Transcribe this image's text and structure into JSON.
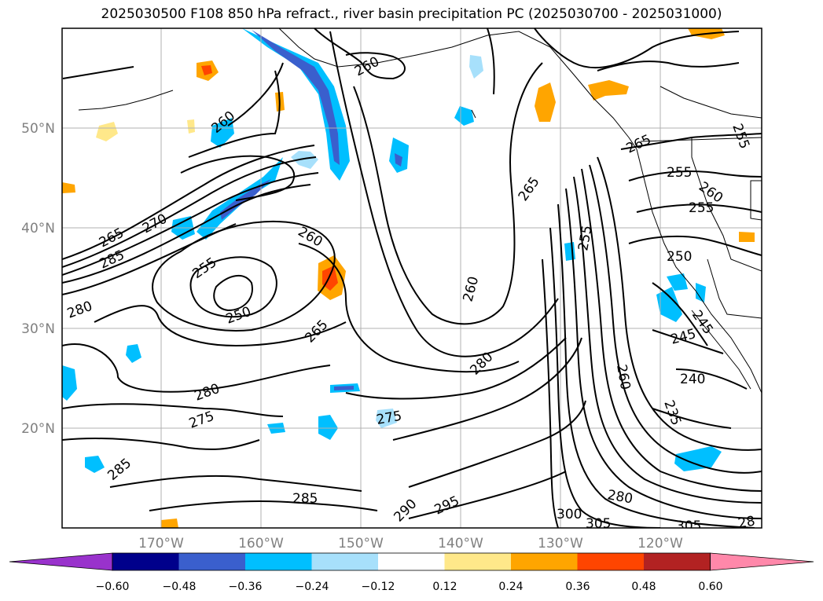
{
  "title": "2025030500 F108 850 hPa refract., river basin precipitation PC (2025030700 - 2025031000)",
  "latitude_labels": [
    "50°N",
    "40°N",
    "30°N",
    "20°N"
  ],
  "longitude_labels": [
    "170°W",
    "160°W",
    "150°W",
    "140°W",
    "130°W",
    "120°W"
  ],
  "colorbar": {
    "extend": "both",
    "tick_labels": [
      "−0.60",
      "−0.48",
      "−0.36",
      "−0.24",
      "−0.12",
      "0.12",
      "0.24",
      "0.36",
      "0.48",
      "0.60"
    ],
    "colors": [
      "#9932cc",
      "#00008b",
      "#3a5fcd",
      "#00bfff",
      "#a7e0fb",
      "#ffffff",
      "#ffe88a",
      "#ffa500",
      "#ff4500",
      "#b22222",
      "#ff88aa"
    ]
  },
  "contour_labels": [
    "260",
    "260",
    "260",
    "265",
    "270",
    "285",
    "280",
    "255",
    "250",
    "265",
    "260",
    "280",
    "275",
    "285",
    "285",
    "275",
    "265",
    "255",
    "265",
    "255",
    "260",
    "255",
    "250",
    "245",
    "245",
    "240",
    "235",
    "260",
    "280",
    "290",
    "295",
    "300",
    "305",
    "280",
    "305",
    "28",
    "255"
  ]
}
